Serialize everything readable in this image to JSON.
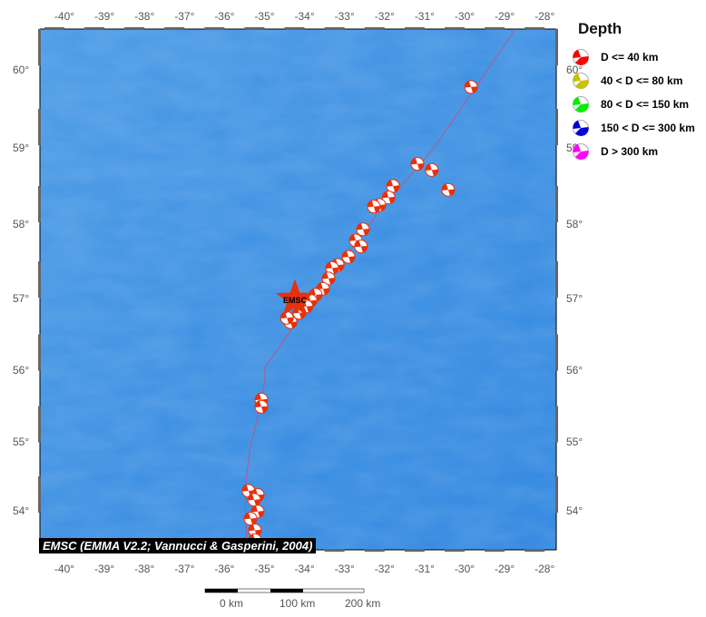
{
  "map": {
    "extent": {
      "lon_min": -40.6,
      "lon_max": -27.7,
      "lat_min": 53.4,
      "lat_max": 60.5
    },
    "lon_ticks": [
      "-40°",
      "-39°",
      "-38°",
      "-37°",
      "-36°",
      "-35°",
      "-34°",
      "-33°",
      "-32°",
      "-31°",
      "-30°",
      "-29°",
      "-28°"
    ],
    "lat_ticks": [
      "60°",
      "59°",
      "58°",
      "57°",
      "56°",
      "55°",
      "54°"
    ],
    "ocean_color": "#3a8de0",
    "plate_boundary": [
      [
        -28.73,
        60.5
      ],
      [
        -30.82,
        58.96
      ],
      [
        -32.09,
        58.2
      ],
      [
        -34.4,
        56.51
      ],
      [
        -34.99,
        56.04
      ],
      [
        -34.99,
        55.85
      ],
      [
        -35.22,
        55.22
      ],
      [
        -35.35,
        54.96
      ],
      [
        -35.49,
        54.3
      ],
      [
        -35.44,
        53.4
      ]
    ],
    "epicenter": {
      "label": "EMSC",
      "lon": -34.24,
      "lat": 56.99,
      "color": "#e8300a"
    },
    "events": [
      [
        -29.84,
        59.78
      ],
      [
        -31.18,
        58.79
      ],
      [
        -30.82,
        58.71
      ],
      [
        -30.41,
        58.45
      ],
      [
        -31.79,
        58.5
      ],
      [
        -31.9,
        58.35
      ],
      [
        -32.13,
        58.25
      ],
      [
        -32.27,
        58.23
      ],
      [
        -32.54,
        57.93
      ],
      [
        -32.72,
        57.78
      ],
      [
        -32.59,
        57.7
      ],
      [
        -32.9,
        57.56
      ],
      [
        -33.17,
        57.45
      ],
      [
        -33.31,
        57.41
      ],
      [
        -33.4,
        57.27
      ],
      [
        -33.54,
        57.13
      ],
      [
        -33.72,
        57.05
      ],
      [
        -33.85,
        56.97
      ],
      [
        -33.95,
        56.89
      ],
      [
        -34.13,
        56.8
      ],
      [
        -34.35,
        56.67
      ],
      [
        -34.44,
        56.73
      ],
      [
        -35.08,
        55.59
      ],
      [
        -35.08,
        55.49
      ],
      [
        -35.4,
        54.29
      ],
      [
        -35.17,
        54.23
      ],
      [
        -35.26,
        54.16
      ],
      [
        -35.17,
        53.99
      ],
      [
        -35.35,
        53.88
      ],
      [
        -35.24,
        53.7
      ],
      [
        -35.24,
        53.55
      ]
    ],
    "event_depth_class": "D <= 40 km"
  },
  "legend": {
    "title": "Depth",
    "items": [
      {
        "label": "D <= 40 km",
        "color": "#ff0000"
      },
      {
        "label": "40 < D <= 80 km",
        "color": "#c8c000"
      },
      {
        "label": "80 < D <= 150 km",
        "color": "#00ee00"
      },
      {
        "label": "150 < D <= 300 km",
        "color": "#0000dd"
      },
      {
        "label": "D > 300 km",
        "color": "#ff00ff"
      }
    ]
  },
  "credit": "EMSC (EMMA V2.2; Vannucci & Gasperini, 2004)",
  "scale_bar": {
    "labels": [
      "0 km",
      "100 km",
      "200 km"
    ]
  }
}
